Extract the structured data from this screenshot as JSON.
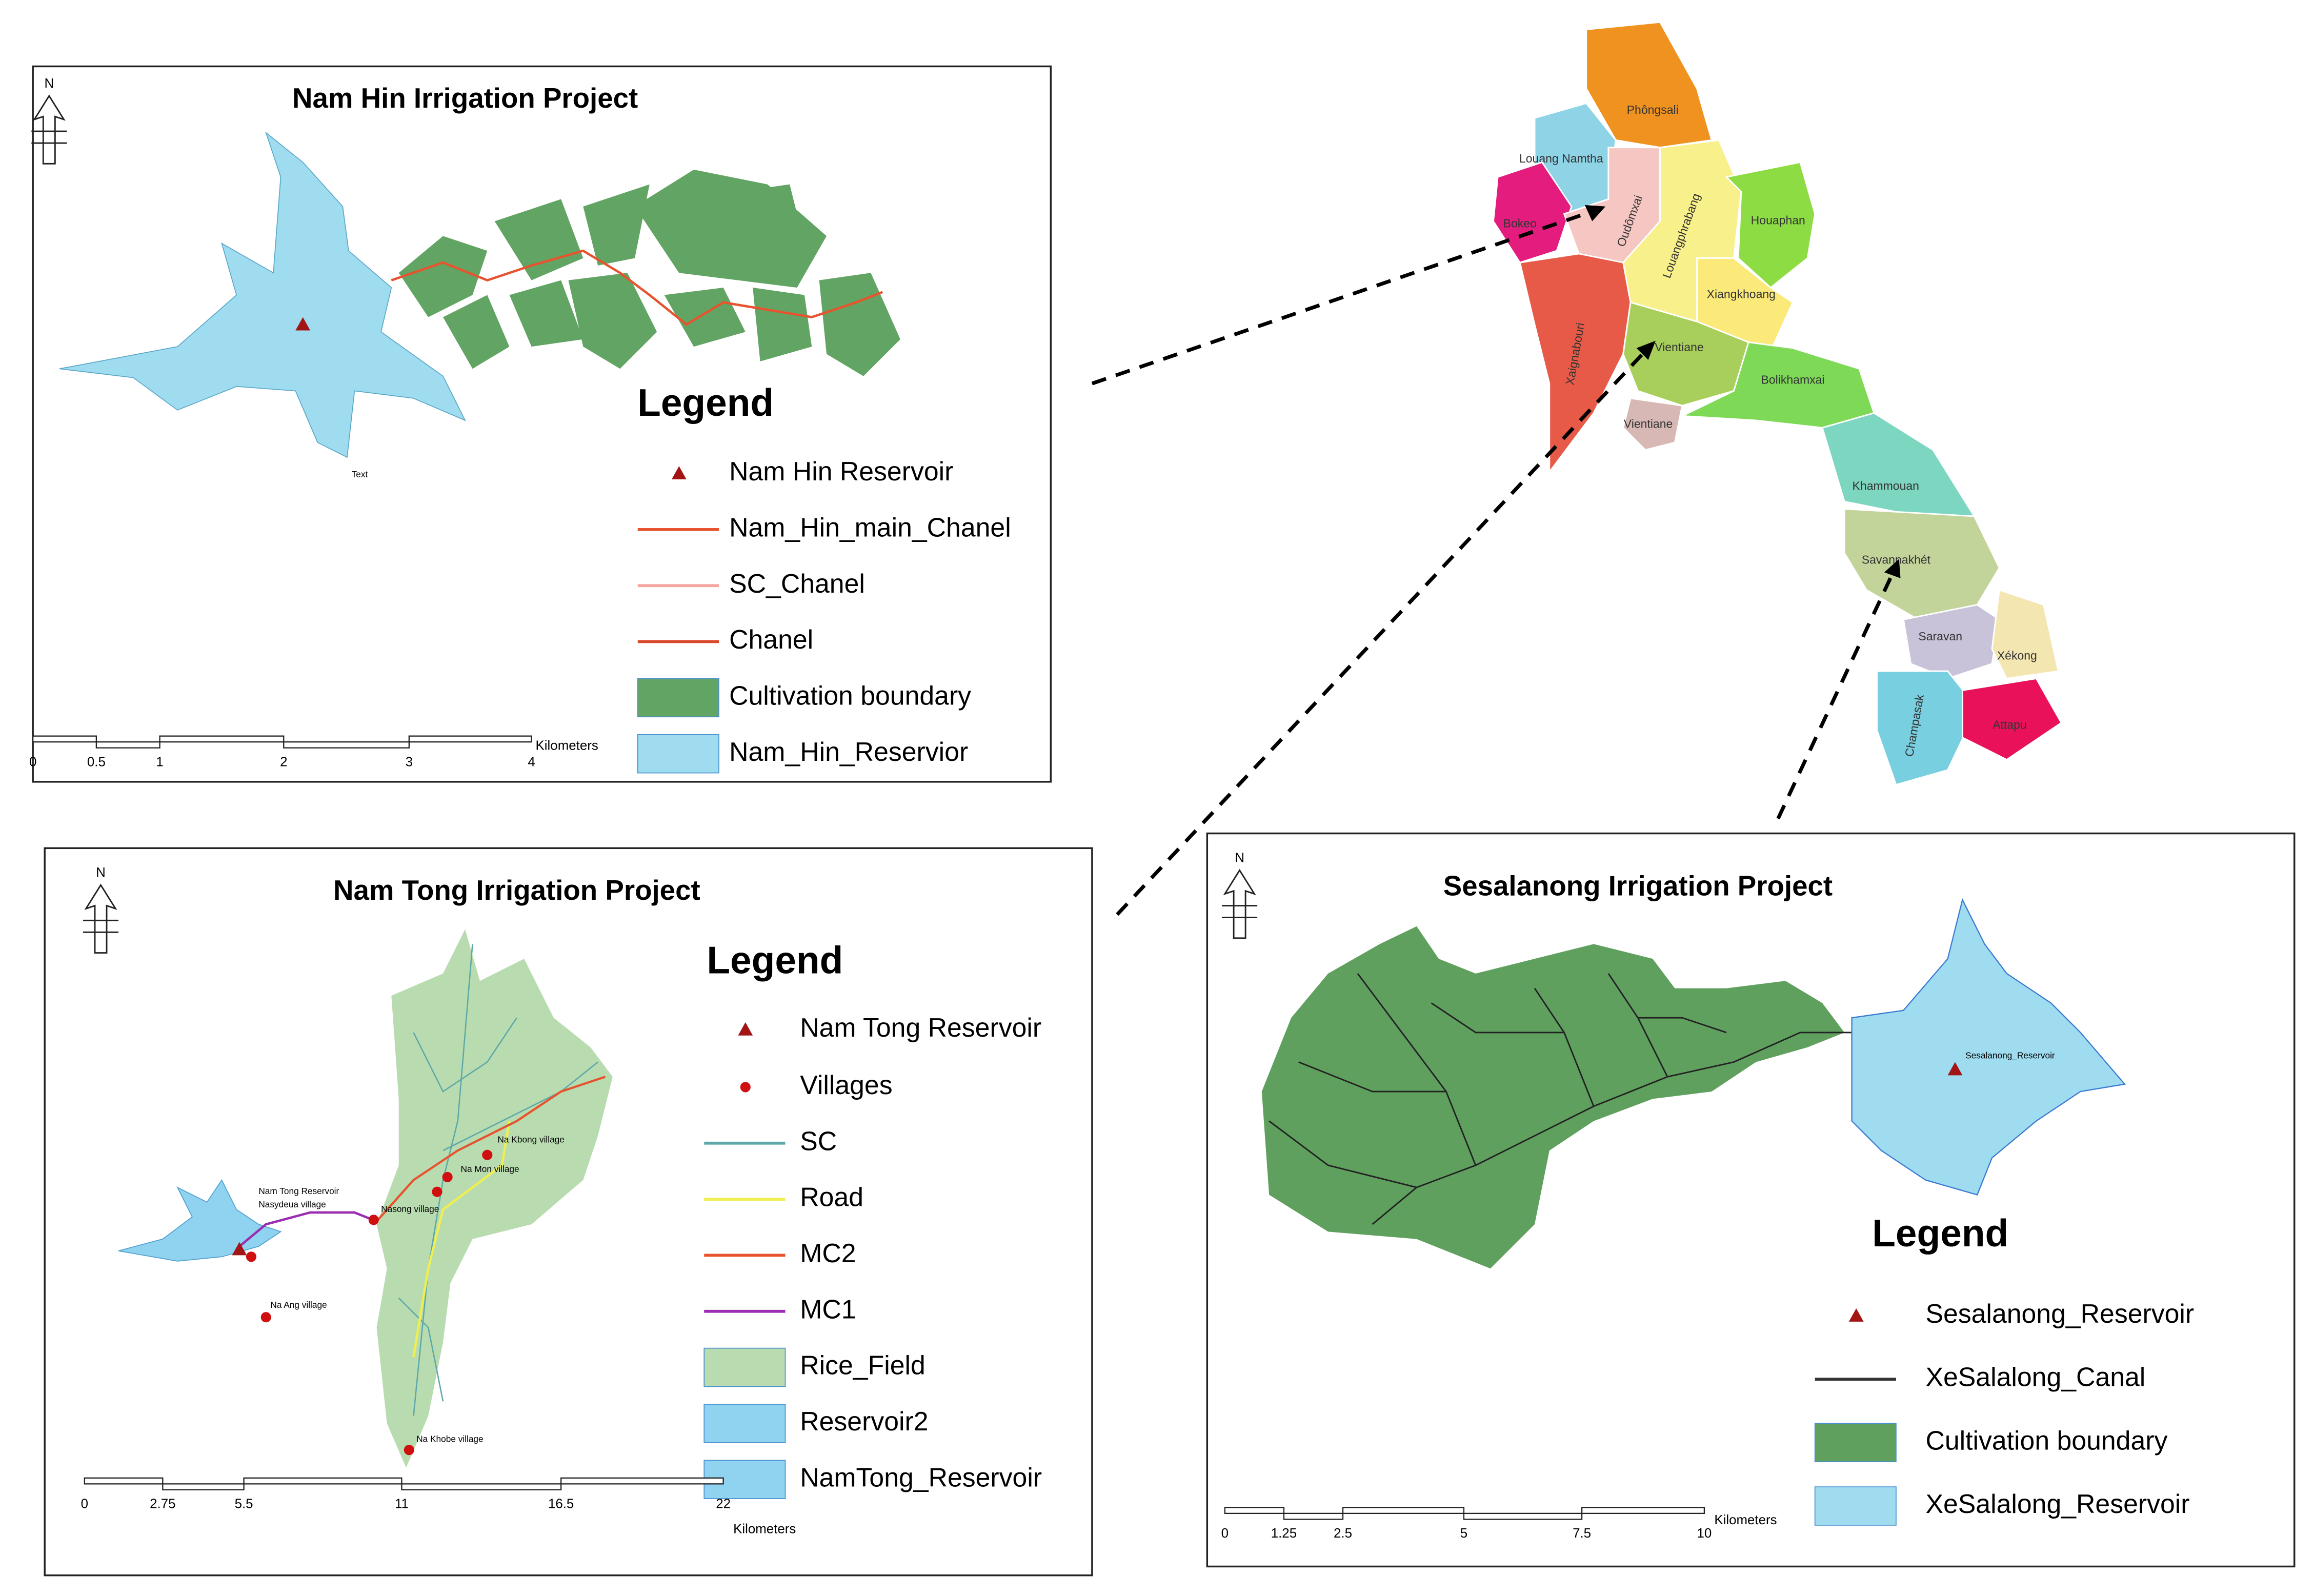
{
  "north_label": "N",
  "panels": [
    {
      "title": "Nam Hin Irrigation Project",
      "legend_title": "Legend",
      "legend": [
        {
          "label": "Nam Hin Reservoir",
          "symbol": "triangle",
          "color": "#a31515"
        },
        {
          "label": "Nam_Hin_main_Chanel",
          "symbol": "line",
          "color": "#e8532f"
        },
        {
          "label": "SC_Chanel",
          "symbol": "line",
          "color": "#f4a6a0"
        },
        {
          "label": "Chanel",
          "symbol": "line",
          "color": "#d9482a"
        },
        {
          "label": "Cultivation boundary",
          "symbol": "fill",
          "color": "#62a463"
        },
        {
          "label": "Nam_Hin_Reservior",
          "symbol": "fill",
          "color": "#9fdcf0"
        }
      ],
      "scale_unit": "Kilometers",
      "scale_ticks": [
        "0",
        "0.5",
        "1",
        "2",
        "3",
        "4"
      ],
      "map_labels": [
        "Text"
      ]
    },
    {
      "title": "Nam Tong Irrigation Project",
      "legend_title": "Legend",
      "legend": [
        {
          "label": "Nam Tong Reservoir",
          "symbol": "triangle",
          "color": "#a31515"
        },
        {
          "label": "Villages",
          "symbol": "dot",
          "color": "#d01010"
        },
        {
          "label": "SC",
          "symbol": "line",
          "color": "#5fa8a8"
        },
        {
          "label": "Road",
          "symbol": "line",
          "color": "#f0ee50"
        },
        {
          "label": "MC2",
          "symbol": "line",
          "color": "#e8532f"
        },
        {
          "label": "MC1",
          "symbol": "line",
          "color": "#9b2db0"
        },
        {
          "label": "Rice_Field",
          "symbol": "fill",
          "color": "#b8dcb0"
        },
        {
          "label": "Reservoir2",
          "symbol": "fill",
          "color": "#8fd3f0"
        },
        {
          "label": "NamTong_Reservoir",
          "symbol": "fill",
          "color": "#8fd3f0"
        }
      ],
      "scale_unit": "Kilometers",
      "scale_ticks": [
        "0",
        "2.75",
        "5.5",
        "11",
        "16.5",
        "22"
      ],
      "map_labels": [
        "Nam Tong Reservoir",
        "Nasydeua village",
        "Na Ang village",
        "Na Khobe village",
        "Nasong village",
        "Na Mon village",
        "Na Kbong village"
      ]
    },
    {
      "title": "Sesalanong Irrigation Project",
      "legend_title": "Legend",
      "legend": [
        {
          "label": "Sesalanong_Reservoir",
          "symbol": "triangle",
          "color": "#a31515"
        },
        {
          "label": "XeSalalong_Canal",
          "symbol": "line",
          "color": "#333333"
        },
        {
          "label": "Cultivation boundary",
          "symbol": "fill",
          "color": "#5fa05f"
        },
        {
          "label": "XeSalalong_Reservoir",
          "symbol": "fill",
          "color": "#9fdcf0"
        }
      ],
      "scale_unit": "Kilometers",
      "scale_ticks": [
        "0",
        "1.25",
        "2.5",
        "5",
        "7.5",
        "10"
      ],
      "map_labels": [
        "Sesalanong_Reservoir"
      ]
    }
  ],
  "laos_provinces": [
    {
      "name": "Phôngsali",
      "color": "#f0921f"
    },
    {
      "name": "Louang Namtha",
      "color": "#8fd3e6"
    },
    {
      "name": "Bokeo",
      "color": "#e31c7e"
    },
    {
      "name": "Oudômxai",
      "color": "#f5c6c2"
    },
    {
      "name": "Louangphrabang",
      "color": "#f8f08a"
    },
    {
      "name": "Houaphan",
      "color": "#8edc44"
    },
    {
      "name": "Xiangkhoang",
      "color": "#fbe97a"
    },
    {
      "name": "Xaignabouri",
      "color": "#e85a48"
    },
    {
      "name": "Vientiane",
      "color": "#a8cf5c"
    },
    {
      "name": "Vientiane",
      "color": "#d8b8b4"
    },
    {
      "name": "Bolikhamxai",
      "color": "#7ed957"
    },
    {
      "name": "Khammouan",
      "color": "#7dd6c0"
    },
    {
      "name": "Savannakhét",
      "color": "#c3d49b"
    },
    {
      "name": "Saravan",
      "color": "#c8c3d8"
    },
    {
      "name": "Xékong",
      "color": "#f3e6b0"
    },
    {
      "name": "Champasak",
      "color": "#78cfe0"
    },
    {
      "name": "Attapu",
      "color": "#e8115a"
    }
  ]
}
